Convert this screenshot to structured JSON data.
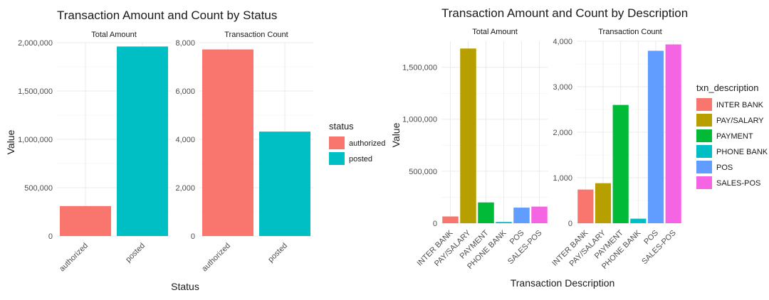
{
  "chart_data": [
    {
      "type": "bar",
      "title": "Transaction Amount and Count by Status",
      "xlabel": "Status",
      "ylabel": "Value",
      "categories": [
        "authorized",
        "posted"
      ],
      "colors": [
        "#F8766D",
        "#00BFC4"
      ],
      "legend": {
        "title": "status",
        "position": "right",
        "labels": [
          "authorized",
          "posted"
        ]
      },
      "facets": [
        {
          "name": "Total Amount",
          "ylim": [
            0,
            2000000
          ],
          "yticks": [
            0,
            500000,
            1000000,
            1500000,
            2000000
          ],
          "ytick_labels": [
            "0",
            "500,000",
            "1,000,000",
            "1,500,000",
            "2,000,000"
          ],
          "values": [
            310000,
            1960000
          ]
        },
        {
          "name": "Transaction Count",
          "ylim": [
            0,
            8000
          ],
          "yticks": [
            0,
            2000,
            4000,
            6000,
            8000
          ],
          "ytick_labels": [
            "0",
            "2,000",
            "4,000",
            "6,000",
            "8,000"
          ],
          "values": [
            7720,
            4320
          ]
        }
      ],
      "grid": true
    },
    {
      "type": "bar",
      "title": "Transaction Amount and Count by Description",
      "xlabel": "Transaction Description",
      "ylabel": "Value",
      "categories": [
        "INTER BANK",
        "PAY/SALARY",
        "PAYMENT",
        "PHONE BANK",
        "POS",
        "SALES-POS"
      ],
      "colors": [
        "#F8766D",
        "#B79F00",
        "#00BA38",
        "#00BFC4",
        "#619CFF",
        "#F564E3"
      ],
      "legend": {
        "title": "txn_description",
        "position": "right",
        "labels": [
          "INTER BANK",
          "PAY/SALARY",
          "PAYMENT",
          "PHONE BANK",
          "POS",
          "SALES-POS"
        ]
      },
      "facets": [
        {
          "name": "Total Amount",
          "ylim": [
            0,
            1750000
          ],
          "yticks": [
            0,
            500000,
            1000000,
            1500000
          ],
          "ytick_labels": [
            "0",
            "500,000",
            "1,000,000",
            "1,500,000"
          ],
          "values": [
            65000,
            1680000,
            200000,
            12000,
            150000,
            160000
          ]
        },
        {
          "name": "Transaction Count",
          "ylim": [
            0,
            4000
          ],
          "yticks": [
            0,
            1000,
            2000,
            3000,
            4000
          ],
          "ytick_labels": [
            "0",
            "1,000",
            "2,000",
            "3,000",
            "4,000"
          ],
          "values": [
            740,
            880,
            2600,
            100,
            3790,
            3930
          ]
        }
      ],
      "grid": true
    }
  ]
}
